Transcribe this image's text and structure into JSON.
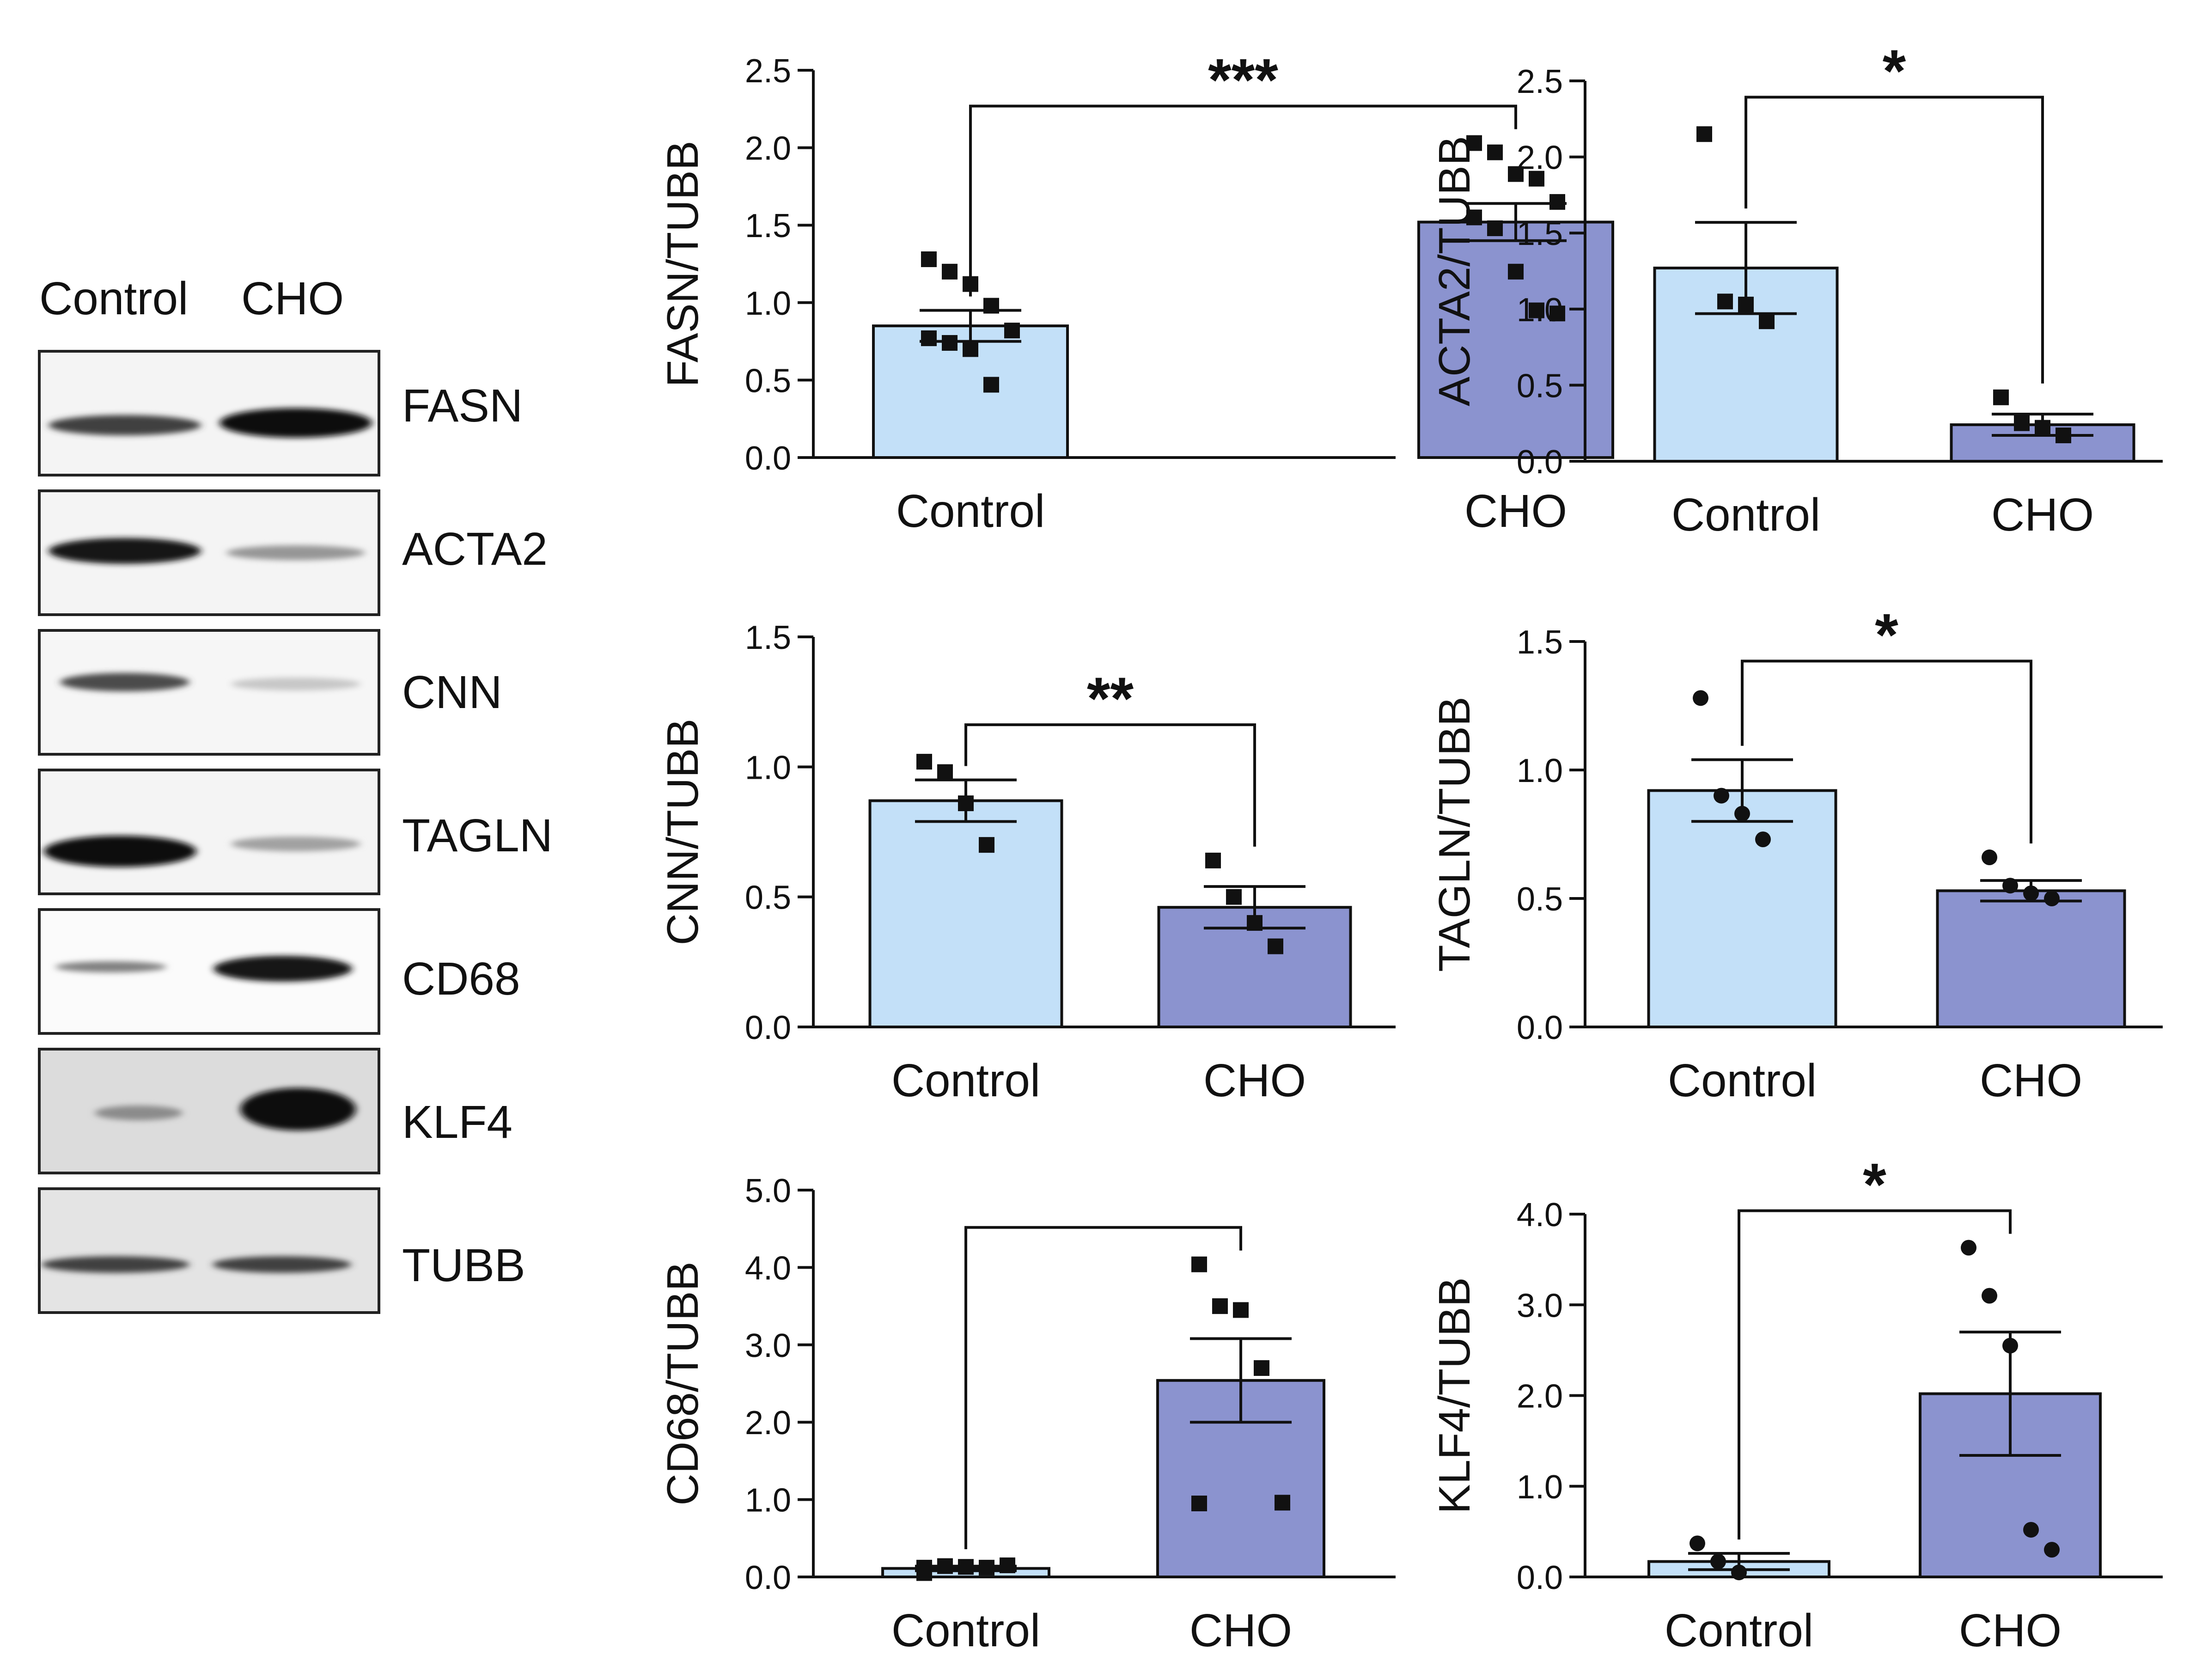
{
  "blot": {
    "lanes": [
      "Control",
      "CHO"
    ],
    "bands": [
      {
        "label": "FASN",
        "control": 0.75,
        "cho": 1.0
      },
      {
        "label": "ACTA2",
        "control": 0.95,
        "cho": 0.35
      },
      {
        "label": "CNN",
        "control": 0.7,
        "cho": 0.12
      },
      {
        "label": "TAGLN",
        "control": 1.0,
        "cho": 0.3
      },
      {
        "label": "CD68",
        "control": 0.45,
        "cho": 0.95
      },
      {
        "label": "KLF4",
        "control": 0.4,
        "cho": 1.0
      },
      {
        "label": "TUBB",
        "control": 0.75,
        "cho": 0.75
      }
    ]
  },
  "colors": {
    "control_bar": "#c3e0f8",
    "cho_bar": "#8b93cf",
    "ink": "#111111"
  },
  "chart_data": [
    {
      "type": "bar",
      "ylabel": "FASN/TUBB",
      "categories": [
        "Control",
        "CHO"
      ],
      "values": [
        0.85,
        1.52
      ],
      "sem": [
        0.1,
        0.12
      ],
      "points": [
        [
          1.28,
          1.2,
          1.12,
          0.98,
          0.82,
          0.77,
          0.74,
          0.7,
          0.47
        ],
        [
          2.03,
          1.97,
          1.83,
          1.8,
          1.65,
          1.55,
          1.48,
          1.2,
          0.95,
          0.93
        ]
      ],
      "marker": "square",
      "ylim": [
        0,
        2.5
      ],
      "yticks": [
        "0.0",
        "0.5",
        "1.0",
        "1.5",
        "2.0",
        "2.5"
      ],
      "significance": "***"
    },
    {
      "type": "bar",
      "ylabel": "ACTA2/TUBB",
      "categories": [
        "Control",
        "CHO"
      ],
      "values": [
        1.27,
        0.24
      ],
      "sem": [
        0.3,
        0.07
      ],
      "points": [
        [
          2.15,
          1.05,
          1.03,
          0.92
        ],
        [
          0.42,
          0.25,
          0.22,
          0.17
        ]
      ],
      "marker": "square",
      "ylim": [
        0,
        2.5
      ],
      "yticks": [
        "0.0",
        "0.5",
        "1.0",
        "1.5",
        "2.0",
        "2.5"
      ],
      "significance": "*"
    },
    {
      "type": "bar",
      "ylabel": "CNN/TUBB",
      "categories": [
        "Control",
        "CHO"
      ],
      "values": [
        0.87,
        0.46
      ],
      "sem": [
        0.08,
        0.08
      ],
      "points": [
        [
          1.02,
          0.98,
          0.86,
          0.7
        ],
        [
          0.64,
          0.5,
          0.4,
          0.31
        ]
      ],
      "marker": "square",
      "ylim": [
        0,
        1.5
      ],
      "yticks": [
        "0.0",
        "0.5",
        "1.0",
        "1.5"
      ],
      "significance": "**"
    },
    {
      "type": "bar",
      "ylabel": "TAGLN/TUBB",
      "categories": [
        "Control",
        "CHO"
      ],
      "values": [
        0.92,
        0.53
      ],
      "sem": [
        0.12,
        0.04
      ],
      "points": [
        [
          1.28,
          0.9,
          0.83,
          0.73
        ],
        [
          0.66,
          0.55,
          0.52,
          0.5
        ]
      ],
      "marker": "circle",
      "ylim": [
        0,
        1.5
      ],
      "yticks": [
        "0.0",
        "0.5",
        "1.0",
        "1.5"
      ],
      "significance": "*"
    },
    {
      "type": "bar",
      "ylabel": "CD68/TUBB",
      "categories": [
        "Control",
        "CHO"
      ],
      "values": [
        0.11,
        2.54
      ],
      "sem": [
        0.03,
        0.54
      ],
      "points": [
        [
          0.12,
          0.14,
          0.13,
          0.12,
          0.15,
          0.05
        ],
        [
          4.04,
          3.5,
          3.45,
          2.7,
          0.96,
          0.95
        ]
      ],
      "marker": "square",
      "ylim": [
        0,
        5
      ],
      "yticks": [
        "0.0",
        "1.0",
        "2.0",
        "3.0",
        "4.0",
        "5.0"
      ],
      "significance": ""
    },
    {
      "type": "bar",
      "ylabel": "KLF4/TUBB",
      "categories": [
        "Control",
        "CHO"
      ],
      "values": [
        0.17,
        2.02
      ],
      "sem": [
        0.09,
        0.68
      ],
      "points": [
        [
          0.37,
          0.17,
          0.05
        ],
        [
          3.63,
          3.1,
          2.55,
          0.52,
          0.3
        ]
      ],
      "marker": "circle",
      "ylim": [
        0,
        4
      ],
      "yticks": [
        "0.0",
        "1.0",
        "2.0",
        "3.0",
        "4.0"
      ],
      "significance": "*"
    }
  ]
}
